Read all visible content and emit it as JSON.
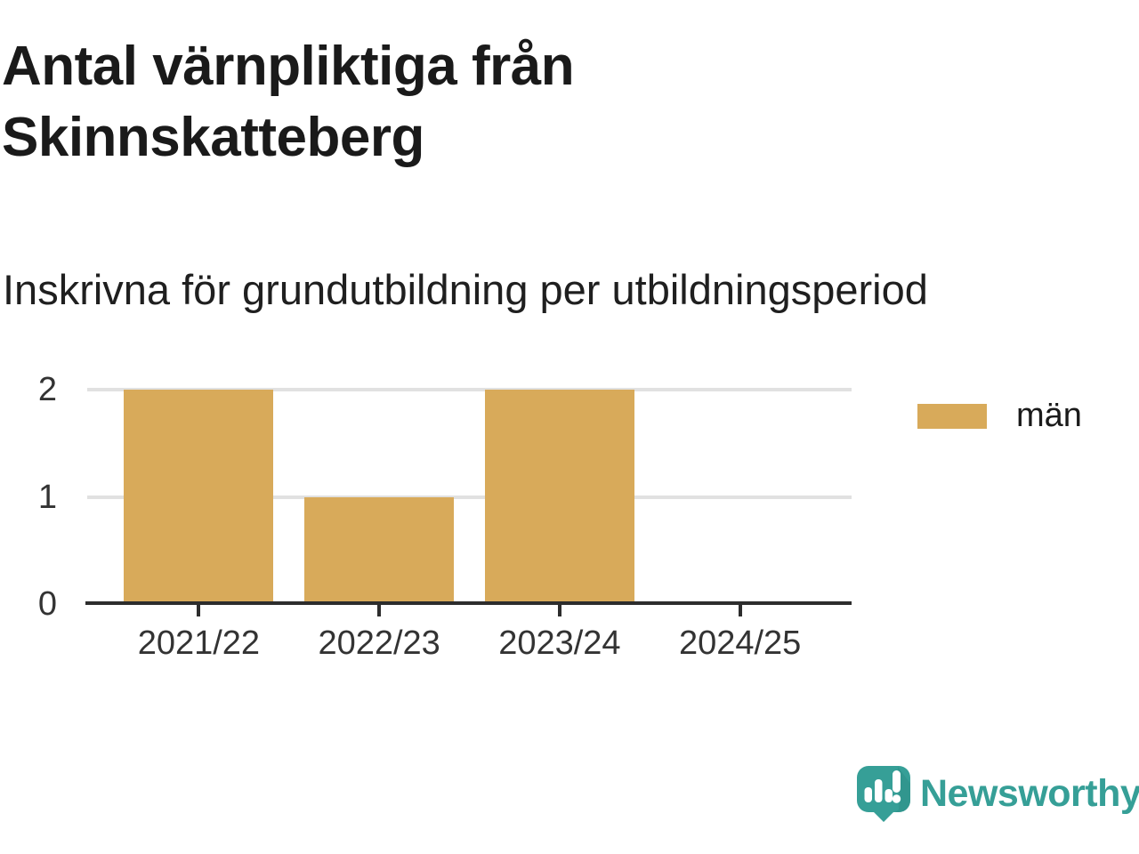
{
  "chart_data": {
    "type": "bar",
    "title": "Antal värnpliktiga från Skinnskatteberg",
    "subtitle": "Inskrivna för grundutbildning per utbildningsperiod",
    "categories": [
      "2021/22",
      "2022/23",
      "2023/24",
      "2024/25"
    ],
    "series": [
      {
        "name": "män",
        "values": [
          2,
          1,
          2,
          0
        ],
        "color": "#d8aa5a"
      }
    ],
    "yticks": [
      0,
      1,
      2
    ],
    "ylim": [
      0,
      2
    ],
    "grid": "horizontal-only",
    "legend_position": "right"
  },
  "legend": {
    "items": [
      {
        "label": "män",
        "color": "#d8aa5a"
      }
    ]
  },
  "footer": {
    "brand": "Newsworthy"
  },
  "colors": {
    "bar": "#d8aa5a",
    "teal": "#369f97",
    "teal_dark": "#2b8d85",
    "title": "#1a1a1a",
    "subtitle": "#1f1f1f",
    "axis_line": "#2d2d2d",
    "axis_text": "#333333",
    "gridline": "#e1e1e1",
    "background": "#ffffff"
  }
}
